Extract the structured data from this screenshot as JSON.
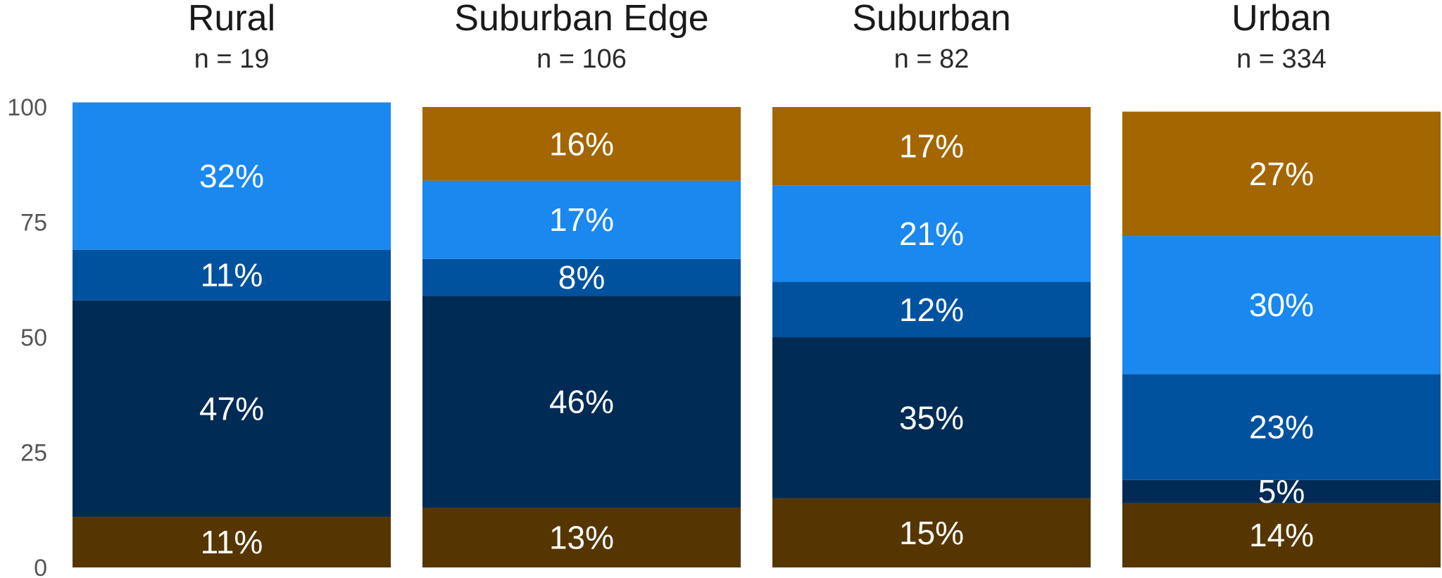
{
  "chart_data": {
    "type": "bar",
    "stacked": true,
    "ylim": [
      0,
      100
    ],
    "yticks": [
      "0",
      "25",
      "50",
      "75",
      "100"
    ],
    "grid": false,
    "colors": [
      "#563600",
      "#002b55",
      "#00529f",
      "#1a88ee",
      "#a36600"
    ],
    "panels": [
      {
        "title": "Rural",
        "n_label": "n = 19",
        "segments": [
          {
            "value": 11,
            "label": "11%",
            "color": "#563600"
          },
          {
            "value": 47,
            "label": "47%",
            "color": "#002b55"
          },
          {
            "value": 11,
            "label": "11%",
            "color": "#00529f"
          },
          {
            "value": 32,
            "label": "32%",
            "color": "#1a88ee"
          }
        ]
      },
      {
        "title": "Suburban Edge",
        "n_label": "n = 106",
        "segments": [
          {
            "value": 13,
            "label": "13%",
            "color": "#563600"
          },
          {
            "value": 46,
            "label": "46%",
            "color": "#002b55"
          },
          {
            "value": 8,
            "label": "8%",
            "color": "#00529f"
          },
          {
            "value": 17,
            "label": "17%",
            "color": "#1a88ee"
          },
          {
            "value": 16,
            "label": "16%",
            "color": "#a36600"
          }
        ]
      },
      {
        "title": "Suburban",
        "n_label": "n = 82",
        "segments": [
          {
            "value": 15,
            "label": "15%",
            "color": "#563600"
          },
          {
            "value": 35,
            "label": "35%",
            "color": "#002b55"
          },
          {
            "value": 12,
            "label": "12%",
            "color": "#00529f"
          },
          {
            "value": 21,
            "label": "21%",
            "color": "#1a88ee"
          },
          {
            "value": 17,
            "label": "17%",
            "color": "#a36600"
          }
        ]
      },
      {
        "title": "Urban",
        "n_label": "n = 334",
        "segments": [
          {
            "value": 14,
            "label": "14%",
            "color": "#563600"
          },
          {
            "value": 5,
            "label": "5%",
            "color": "#002b55"
          },
          {
            "value": 23,
            "label": "23%",
            "color": "#00529f"
          },
          {
            "value": 30,
            "label": "30%",
            "color": "#1a88ee"
          },
          {
            "value": 27,
            "label": "27%",
            "color": "#a36600"
          }
        ]
      }
    ]
  }
}
